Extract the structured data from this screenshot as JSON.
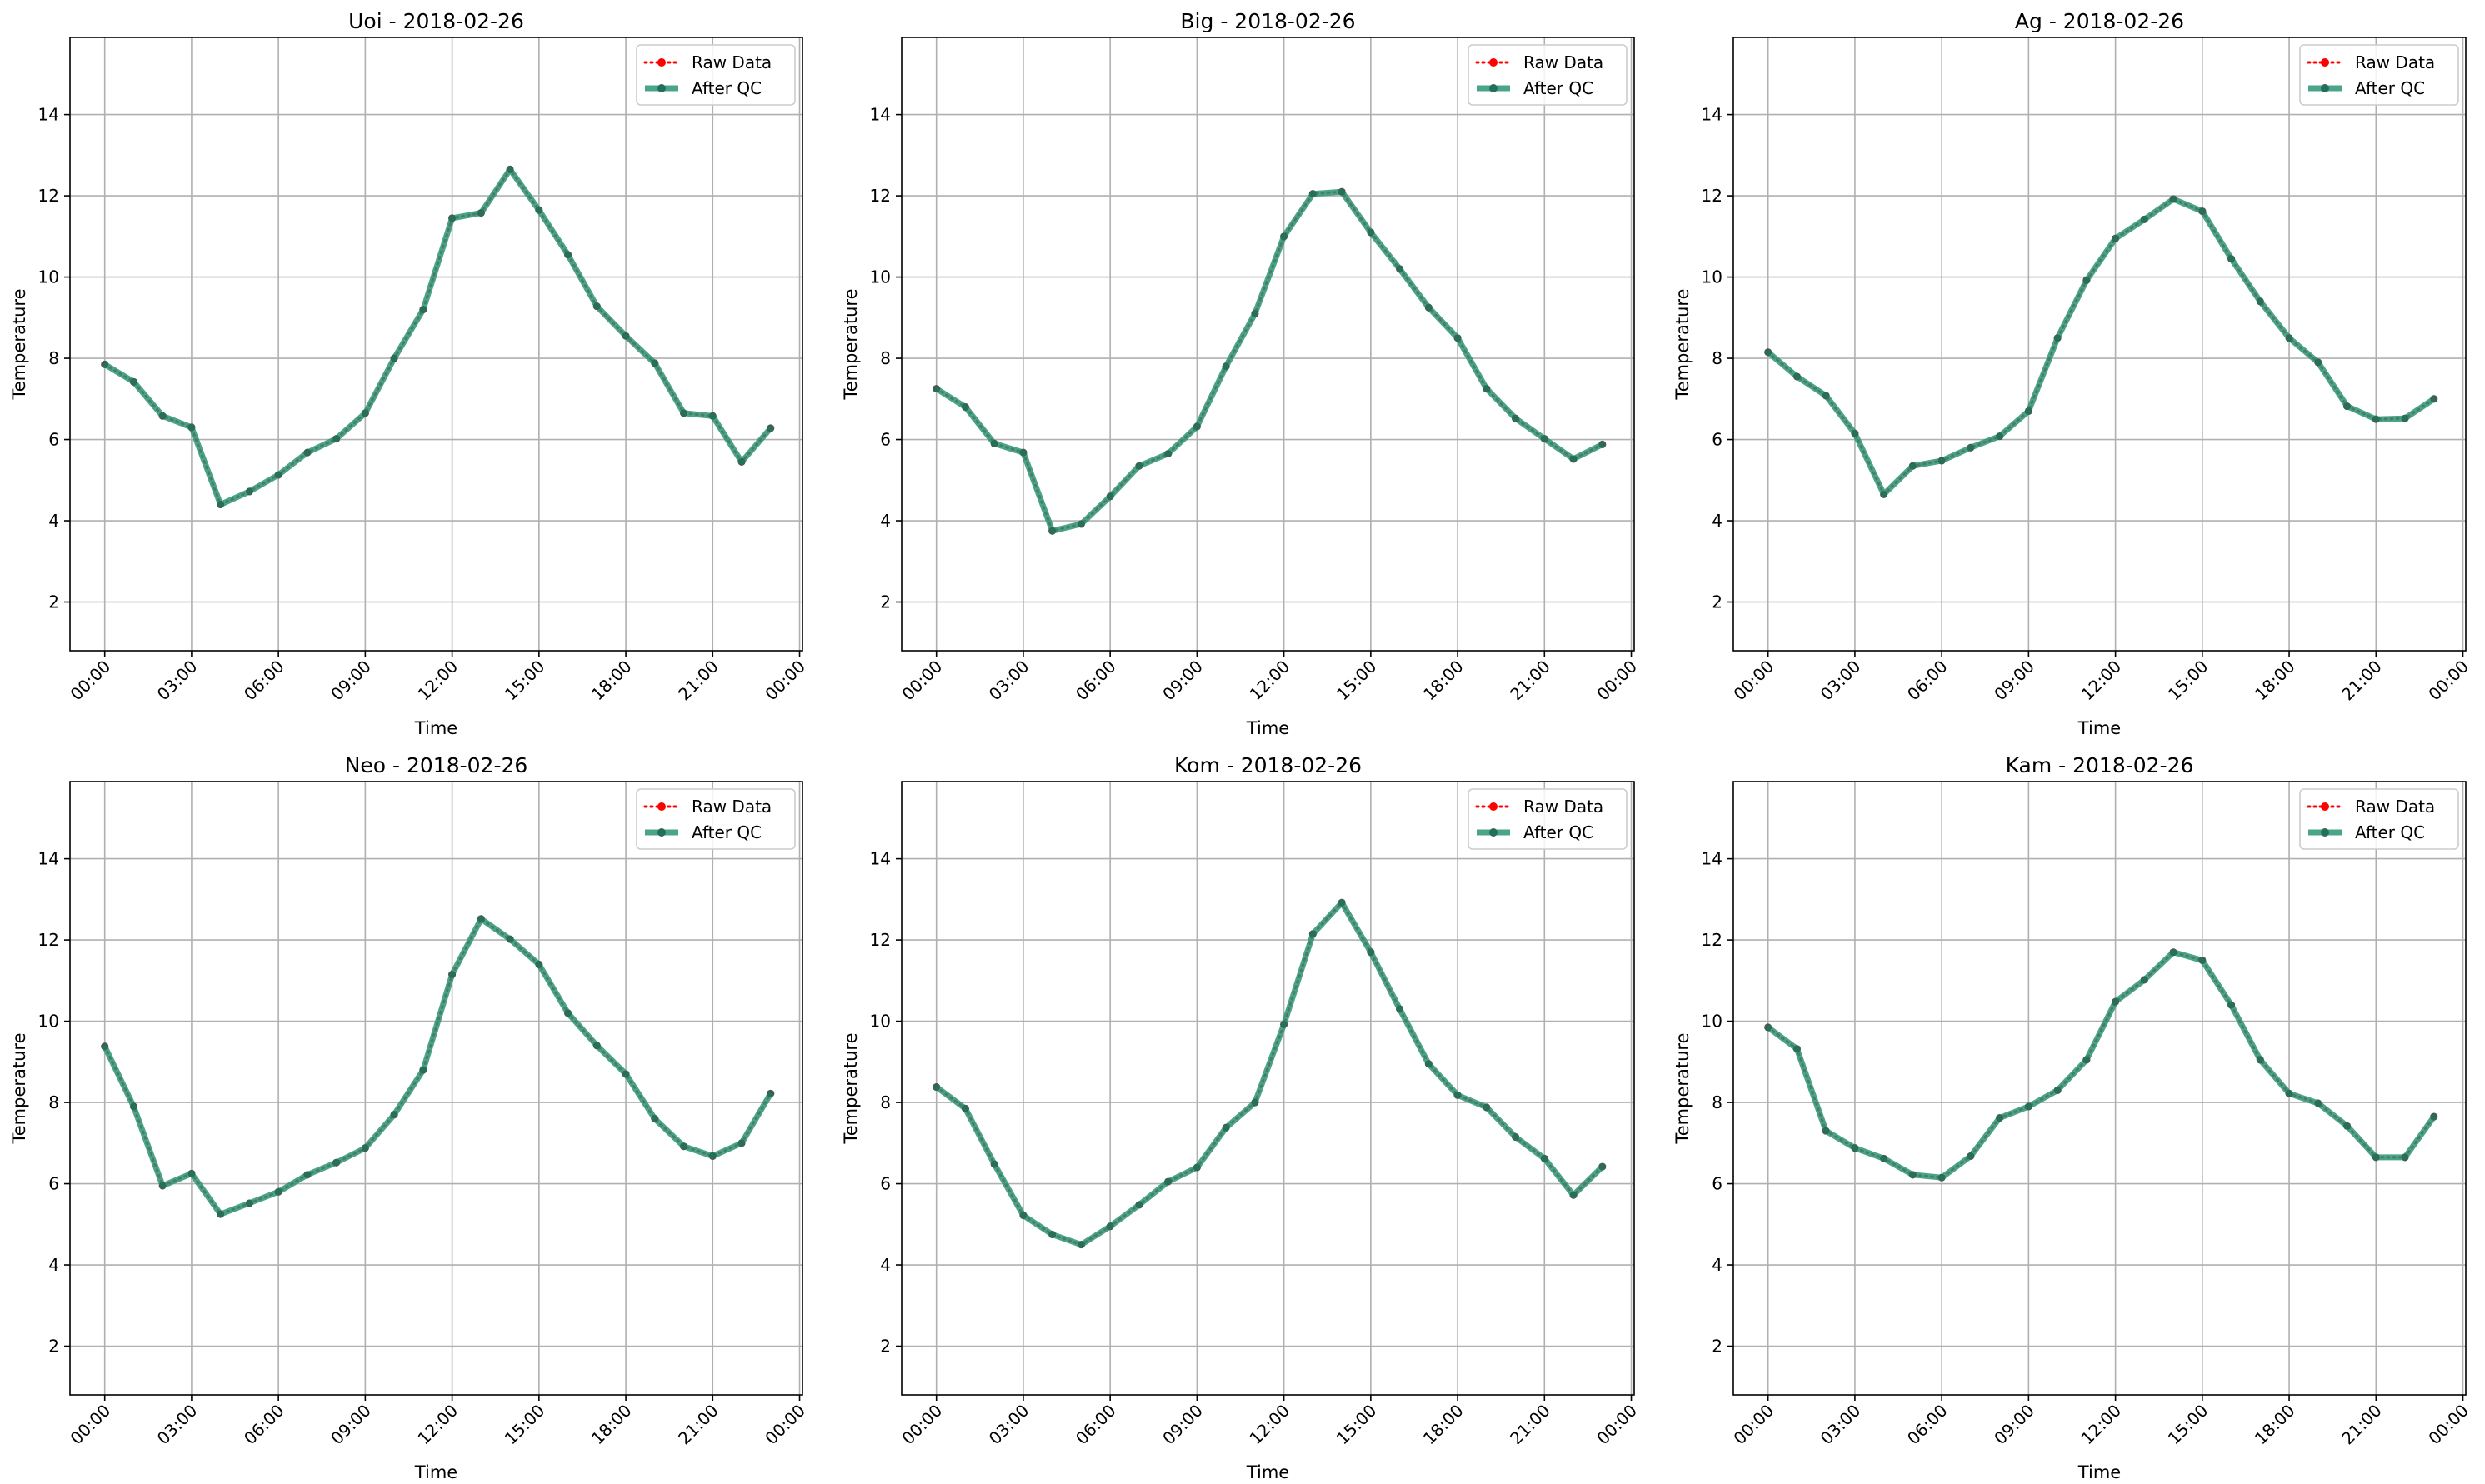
{
  "chart_data": [
    {
      "type": "line",
      "title": "Uoi - 2018-02-26",
      "xlabel": "Time",
      "ylabel": "Temperature",
      "x": [
        0,
        1,
        2,
        3,
        4,
        5,
        6,
        7,
        8,
        9,
        10,
        11,
        12,
        13,
        14,
        15,
        16,
        17,
        18,
        19,
        20,
        21,
        22,
        23
      ],
      "xlim": [
        -1.2,
        24.1
      ],
      "ylim": [
        0.8,
        15.9
      ],
      "yticks": [
        2,
        4,
        6,
        8,
        10,
        12,
        14
      ],
      "xticks": [
        0,
        3,
        6,
        9,
        12,
        15,
        18,
        21,
        24
      ],
      "xtick_labels": [
        "00:00",
        "03:00",
        "06:00",
        "09:00",
        "12:00",
        "15:00",
        "18:00",
        "21:00",
        "00:00"
      ],
      "grid": true,
      "legend": "upper right",
      "series": [
        {
          "name": "Raw Data",
          "color": "#ff0000",
          "values": [
            7.85,
            7.42,
            6.58,
            6.3,
            4.4,
            4.72,
            5.13,
            5.68,
            6.02,
            6.65,
            8.0,
            9.2,
            11.45,
            11.58,
            12.65,
            11.65,
            10.55,
            9.28,
            8.55,
            7.88,
            6.65,
            6.58,
            5.45,
            6.28
          ]
        },
        {
          "name": "After QC",
          "color": "#2a9474",
          "values": [
            7.85,
            7.42,
            6.58,
            6.3,
            4.4,
            4.72,
            5.13,
            5.68,
            6.02,
            6.65,
            8.0,
            9.2,
            11.45,
            11.58,
            12.65,
            11.65,
            10.55,
            9.28,
            8.55,
            7.88,
            6.65,
            6.58,
            5.45,
            6.28
          ]
        }
      ]
    },
    {
      "type": "line",
      "title": "Big - 2018-02-26",
      "xlabel": "Time",
      "ylabel": "Temperature",
      "x": [
        0,
        1,
        2,
        3,
        4,
        5,
        6,
        7,
        8,
        9,
        10,
        11,
        12,
        13,
        14,
        15,
        16,
        17,
        18,
        19,
        20,
        21,
        22,
        23
      ],
      "xlim": [
        -1.2,
        24.1
      ],
      "ylim": [
        0.8,
        15.9
      ],
      "yticks": [
        2,
        4,
        6,
        8,
        10,
        12,
        14
      ],
      "xticks": [
        0,
        3,
        6,
        9,
        12,
        15,
        18,
        21,
        24
      ],
      "xtick_labels": [
        "00:00",
        "03:00",
        "06:00",
        "09:00",
        "12:00",
        "15:00",
        "18:00",
        "21:00",
        "00:00"
      ],
      "grid": true,
      "legend": "upper right",
      "series": [
        {
          "name": "Raw Data",
          "color": "#ff0000",
          "values": [
            7.25,
            6.8,
            5.9,
            5.68,
            3.75,
            3.92,
            4.6,
            5.35,
            5.65,
            6.32,
            7.8,
            9.1,
            11.0,
            12.05,
            12.1,
            11.1,
            10.2,
            9.25,
            8.5,
            7.25,
            6.52,
            6.02,
            5.52,
            5.88
          ]
        },
        {
          "name": "After QC",
          "color": "#2a9474",
          "values": [
            7.25,
            6.8,
            5.9,
            5.68,
            3.75,
            3.92,
            4.6,
            5.35,
            5.65,
            6.32,
            7.8,
            9.1,
            11.0,
            12.05,
            12.1,
            11.1,
            10.2,
            9.25,
            8.5,
            7.25,
            6.52,
            6.02,
            5.52,
            5.88
          ]
        }
      ]
    },
    {
      "type": "line",
      "title": "Ag - 2018-02-26",
      "xlabel": "Time",
      "ylabel": "Temperature",
      "x": [
        0,
        1,
        2,
        3,
        4,
        5,
        6,
        7,
        8,
        9,
        10,
        11,
        12,
        13,
        14,
        15,
        16,
        17,
        18,
        19,
        20,
        21,
        22,
        23
      ],
      "xlim": [
        -1.2,
        24.1
      ],
      "ylim": [
        0.8,
        15.9
      ],
      "yticks": [
        2,
        4,
        6,
        8,
        10,
        12,
        14
      ],
      "xticks": [
        0,
        3,
        6,
        9,
        12,
        15,
        18,
        21,
        24
      ],
      "xtick_labels": [
        "00:00",
        "03:00",
        "06:00",
        "09:00",
        "12:00",
        "15:00",
        "18:00",
        "21:00",
        "00:00"
      ],
      "grid": true,
      "legend": "upper right",
      "series": [
        {
          "name": "Raw Data",
          "color": "#ff0000",
          "values": [
            8.15,
            7.55,
            7.08,
            6.15,
            4.65,
            5.35,
            5.48,
            5.8,
            6.08,
            6.7,
            8.5,
            9.92,
            10.95,
            11.42,
            11.92,
            11.62,
            10.45,
            9.4,
            8.5,
            7.9,
            6.82,
            6.5,
            6.52,
            7.0
          ]
        },
        {
          "name": "After QC",
          "color": "#2a9474",
          "values": [
            8.15,
            7.55,
            7.08,
            6.15,
            4.65,
            5.35,
            5.48,
            5.8,
            6.08,
            6.7,
            8.5,
            9.92,
            10.95,
            11.42,
            11.92,
            11.62,
            10.45,
            9.4,
            8.5,
            7.9,
            6.82,
            6.5,
            6.52,
            7.0
          ]
        }
      ]
    },
    {
      "type": "line",
      "title": "Neo - 2018-02-26",
      "xlabel": "Time",
      "ylabel": "Temperature",
      "x": [
        0,
        1,
        2,
        3,
        4,
        5,
        6,
        7,
        8,
        9,
        10,
        11,
        12,
        13,
        14,
        15,
        16,
        17,
        18,
        19,
        20,
        21,
        22,
        23
      ],
      "xlim": [
        -1.2,
        24.1
      ],
      "ylim": [
        0.8,
        15.9
      ],
      "yticks": [
        2,
        4,
        6,
        8,
        10,
        12,
        14
      ],
      "xticks": [
        0,
        3,
        6,
        9,
        12,
        15,
        18,
        21,
        24
      ],
      "xtick_labels": [
        "00:00",
        "03:00",
        "06:00",
        "09:00",
        "12:00",
        "15:00",
        "18:00",
        "21:00",
        "00:00"
      ],
      "grid": true,
      "legend": "upper right",
      "series": [
        {
          "name": "Raw Data",
          "color": "#ff0000",
          "values": [
            9.38,
            7.9,
            5.95,
            6.25,
            5.25,
            5.52,
            5.8,
            6.22,
            6.52,
            6.88,
            7.7,
            8.8,
            11.15,
            12.52,
            12.02,
            11.4,
            10.2,
            9.4,
            8.7,
            7.6,
            6.92,
            6.68,
            7.0,
            8.22
          ]
        },
        {
          "name": "After QC",
          "color": "#2a9474",
          "values": [
            9.38,
            7.9,
            5.95,
            6.25,
            5.25,
            5.52,
            5.8,
            6.22,
            6.52,
            6.88,
            7.7,
            8.8,
            11.15,
            12.52,
            12.02,
            11.4,
            10.2,
            9.4,
            8.7,
            7.6,
            6.92,
            6.68,
            7.0,
            8.22
          ]
        }
      ]
    },
    {
      "type": "line",
      "title": "Kom - 2018-02-26",
      "xlabel": "Time",
      "ylabel": "Temperature",
      "x": [
        0,
        1,
        2,
        3,
        4,
        5,
        6,
        7,
        8,
        9,
        10,
        11,
        12,
        13,
        14,
        15,
        16,
        17,
        18,
        19,
        20,
        21,
        22,
        23
      ],
      "xlim": [
        -1.2,
        24.1
      ],
      "ylim": [
        0.8,
        15.9
      ],
      "yticks": [
        2,
        4,
        6,
        8,
        10,
        12,
        14
      ],
      "xticks": [
        0,
        3,
        6,
        9,
        12,
        15,
        18,
        21,
        24
      ],
      "xtick_labels": [
        "00:00",
        "03:00",
        "06:00",
        "09:00",
        "12:00",
        "15:00",
        "18:00",
        "21:00",
        "00:00"
      ],
      "grid": true,
      "legend": "upper right",
      "series": [
        {
          "name": "Raw Data",
          "color": "#ff0000",
          "values": [
            8.38,
            7.85,
            6.48,
            5.22,
            4.75,
            4.5,
            4.95,
            5.48,
            6.05,
            6.4,
            7.38,
            8.0,
            9.92,
            12.15,
            12.92,
            11.7,
            10.3,
            8.95,
            8.18,
            7.88,
            7.15,
            6.62,
            5.72,
            6.42
          ]
        },
        {
          "name": "After QC",
          "color": "#2a9474",
          "values": [
            8.38,
            7.85,
            6.48,
            5.22,
            4.75,
            4.5,
            4.95,
            5.48,
            6.05,
            6.4,
            7.38,
            8.0,
            9.92,
            12.15,
            12.92,
            11.7,
            10.3,
            8.95,
            8.18,
            7.88,
            7.15,
            6.62,
            5.72,
            6.42
          ]
        }
      ]
    },
    {
      "type": "line",
      "title": "Kam - 2018-02-26",
      "xlabel": "Time",
      "ylabel": "Temperature",
      "x": [
        0,
        1,
        2,
        3,
        4,
        5,
        6,
        7,
        8,
        9,
        10,
        11,
        12,
        13,
        14,
        15,
        16,
        17,
        18,
        19,
        20,
        21,
        22,
        23
      ],
      "xlim": [
        -1.2,
        24.1
      ],
      "ylim": [
        0.8,
        15.9
      ],
      "yticks": [
        2,
        4,
        6,
        8,
        10,
        12,
        14
      ],
      "xticks": [
        0,
        3,
        6,
        9,
        12,
        15,
        18,
        21,
        24
      ],
      "xtick_labels": [
        "00:00",
        "03:00",
        "06:00",
        "09:00",
        "12:00",
        "15:00",
        "18:00",
        "21:00",
        "00:00"
      ],
      "grid": true,
      "legend": "upper right",
      "series": [
        {
          "name": "Raw Data",
          "color": "#ff0000",
          "values": [
            9.85,
            9.32,
            7.3,
            6.88,
            6.62,
            6.22,
            6.15,
            6.68,
            7.62,
            7.9,
            8.3,
            9.05,
            10.48,
            11.02,
            11.7,
            11.5,
            10.4,
            9.05,
            8.22,
            7.98,
            7.42,
            6.65,
            6.65,
            7.65
          ]
        },
        {
          "name": "After QC",
          "color": "#2a9474",
          "values": [
            9.85,
            9.32,
            7.3,
            6.88,
            6.62,
            6.22,
            6.15,
            6.68,
            7.62,
            7.9,
            8.3,
            9.05,
            10.48,
            11.02,
            11.7,
            11.5,
            10.4,
            9.05,
            8.22,
            7.98,
            7.42,
            6.65,
            6.65,
            7.65
          ]
        }
      ]
    }
  ]
}
